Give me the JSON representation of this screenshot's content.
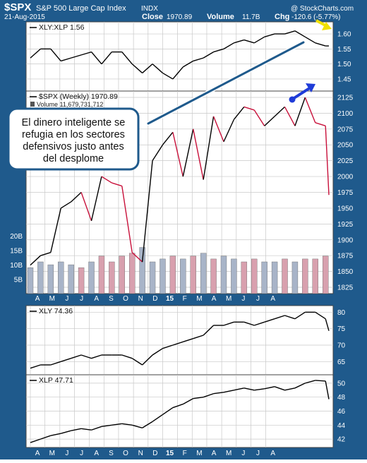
{
  "header": {
    "symbol": "$SPX",
    "name": "S&P 500 Large Cap Index",
    "exchange": "INDX",
    "date": "21-Aug-2015",
    "close_label": "Close",
    "close_value": "1970.89",
    "volume_label": "Volume",
    "volume_value": "11.7B",
    "chg_label": "Chg",
    "chg_value": "-120.6 (-5.77%)",
    "watermark": "@ StockCharts.com"
  },
  "callout": {
    "text": "El dinero inteligente se refugia en los sectores defensivos justo antes del desplome"
  },
  "colors": {
    "background": "#1f5a8c",
    "grid": "#c8c8c8",
    "up_line": "#000000",
    "down_line": "#c8103a",
    "volume_up": "#a8b4c8",
    "volume_down": "#d8a0ae",
    "blue_arrow": "#1f3cd8",
    "yellow_arrow": "#f0e000"
  },
  "x_axis": {
    "labels": [
      "A",
      "M",
      "J",
      "J",
      "A",
      "S",
      "O",
      "N",
      "D",
      "15",
      "F",
      "M",
      "A",
      "M",
      "J",
      "J",
      "A"
    ]
  },
  "chart_data": [
    {
      "type": "line",
      "legend": "XLY:XLP 1.56",
      "y_ticks": [
        1.45,
        1.5,
        1.55,
        1.6
      ],
      "ylim": [
        1.41,
        1.64
      ],
      "x_weeks": [
        0,
        3,
        6,
        9,
        12,
        15,
        18,
        21,
        24,
        27,
        30,
        33,
        36,
        39,
        42,
        45,
        48,
        51,
        54,
        57,
        60,
        63,
        66,
        69,
        72,
        75,
        78,
        81,
        84,
        87,
        88
      ],
      "values": [
        1.52,
        1.55,
        1.55,
        1.51,
        1.52,
        1.53,
        1.54,
        1.5,
        1.54,
        1.54,
        1.5,
        1.47,
        1.5,
        1.47,
        1.45,
        1.49,
        1.51,
        1.52,
        1.54,
        1.55,
        1.57,
        1.58,
        1.57,
        1.59,
        1.6,
        1.6,
        1.61,
        1.59,
        1.57,
        1.56,
        1.56
      ]
    },
    {
      "type": "line",
      "legend": "$SPX (Weekly) 1970.89",
      "volume_legend": "Volume 11,679,731,712",
      "y_ticks": [
        1825,
        1850,
        1875,
        1900,
        1925,
        1950,
        1975,
        2000,
        2025,
        2050,
        2075,
        2100,
        2125
      ],
      "ylim": [
        1815,
        2135
      ],
      "volume_ticks": [
        "5B",
        "10B",
        "15B",
        "20B"
      ],
      "volume_max": 22,
      "x_weeks": [
        0,
        3,
        6,
        9,
        12,
        15,
        18,
        21,
        24,
        27,
        30,
        33,
        36,
        39,
        42,
        45,
        48,
        51,
        54,
        57,
        60,
        63,
        66,
        69,
        72,
        75,
        78,
        81,
        84,
        87,
        88
      ],
      "values": [
        1860,
        1875,
        1880,
        1950,
        1960,
        1975,
        1930,
        2000,
        1990,
        1985,
        1880,
        1865,
        2025,
        2050,
        2070,
        2000,
        2075,
        1995,
        2095,
        2055,
        2090,
        2110,
        2105,
        2080,
        2095,
        2110,
        2080,
        2125,
        2085,
        2080,
        1970.89
      ],
      "volume_weeks": [
        0,
        3,
        6,
        9,
        12,
        15,
        18,
        21,
        24,
        27,
        30,
        33,
        36,
        39,
        42,
        45,
        48,
        51,
        54,
        57,
        60,
        63,
        66,
        69,
        72,
        75,
        78,
        81,
        84,
        87
      ],
      "volume_values": [
        9,
        11,
        10,
        11,
        10,
        9,
        11,
        13,
        11,
        13,
        14,
        16,
        11,
        12,
        13,
        12,
        13,
        14,
        12,
        13,
        12,
        11,
        12,
        11,
        11,
        12,
        11,
        12,
        12,
        13
      ]
    },
    {
      "type": "line",
      "legend": "XLY 74.36",
      "y_ticks": [
        65,
        70,
        75,
        80
      ],
      "ylim": [
        61,
        82
      ],
      "x_weeks": [
        0,
        3,
        6,
        9,
        12,
        15,
        18,
        21,
        24,
        27,
        30,
        33,
        36,
        39,
        42,
        45,
        48,
        51,
        54,
        57,
        60,
        63,
        66,
        69,
        72,
        75,
        78,
        81,
        84,
        87,
        88
      ],
      "values": [
        63,
        64,
        64,
        65,
        66,
        67,
        66,
        67,
        67,
        67,
        66,
        64,
        67,
        69,
        70,
        71,
        72,
        73,
        76,
        76,
        77,
        77,
        76,
        77,
        78,
        79,
        78,
        80,
        80,
        78,
        74.36
      ]
    },
    {
      "type": "line",
      "legend": "XLP 47.71",
      "y_ticks": [
        42,
        44,
        46,
        48,
        50
      ],
      "ylim": [
        40.8,
        51.2
      ],
      "x_weeks": [
        0,
        3,
        6,
        9,
        12,
        15,
        18,
        21,
        24,
        27,
        30,
        33,
        36,
        39,
        42,
        45,
        48,
        51,
        54,
        57,
        60,
        63,
        66,
        69,
        72,
        75,
        78,
        81,
        84,
        87,
        88
      ],
      "values": [
        41.5,
        42.0,
        42.5,
        42.8,
        43.2,
        43.5,
        43.3,
        43.8,
        44.0,
        44.2,
        44.0,
        43.6,
        44.5,
        45.5,
        46.5,
        47.0,
        47.8,
        48.0,
        48.5,
        48.7,
        49.0,
        49.3,
        49.0,
        49.2,
        49.5,
        49.0,
        49.3,
        50.0,
        50.4,
        50.3,
        47.71
      ]
    }
  ]
}
